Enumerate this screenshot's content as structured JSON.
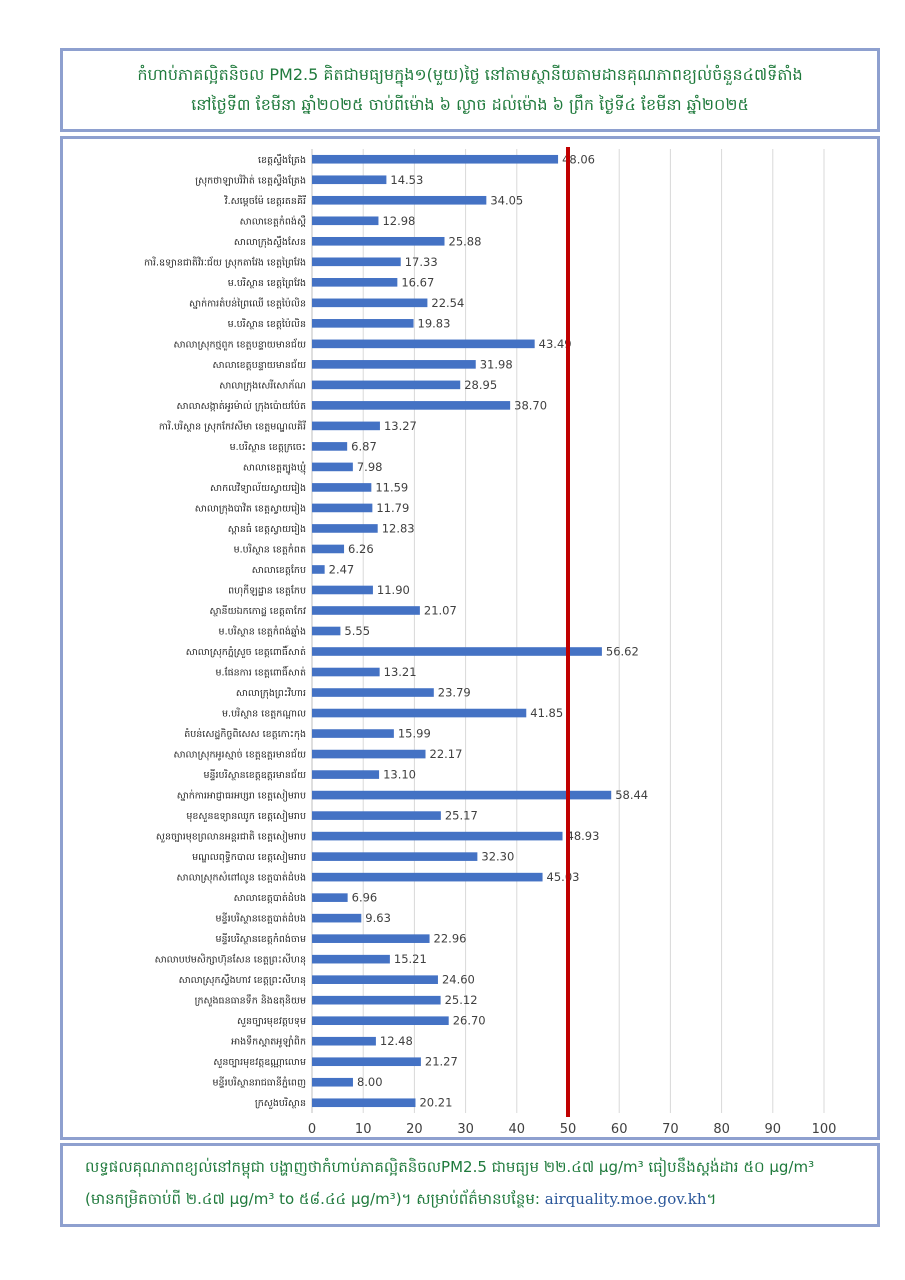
{
  "title": {
    "line1": "កំហាប់ភាគល្អិតនិចល PM2.5 គិតជាមធ្យមក្នុង១(មួយ)ថ្ងៃ នៅតាមស្ថានីយតាមដានគុណភាពខ្យល់ចំនួន៤៧ទីតាំង",
    "line2": "នៅថ្ងៃទី៣ ខែមីនា ឆ្នាំ២០២៥ ចាប់ពីម៉ោង ៦ ល្ងាច ដល់ម៉ោង ៦ ព្រឹក ថ្ងៃទី៤ ខែមីនា ឆ្នាំ២០២៥"
  },
  "footer": {
    "line1": "លទ្ធផលគុណភាពខ្យល់នៅកម្ពុជា បង្ហាញថាកំហាប់ភាគល្អិតនិចលPM2.5 ជាមធ្យម ២២.៤៧ μg/m³ ធៀបនឹងស្តង់ដារ ៥០ μg/m³",
    "line2_prefix": "(មានកម្រិតចាប់ពី ២.៤៧ μg/m³ to ៥៨.៤៤ μg/m³)។ សម្រាប់ព័ត៌មានបន្ថែម: ",
    "line2_link": "airquality.moe.gov.kh",
    "line2_suffix": "។"
  },
  "chart_data": {
    "type": "bar",
    "orientation": "horizontal",
    "unit": "μg/m³",
    "xlim": [
      0,
      100
    ],
    "x_ticks": [
      0,
      10,
      20,
      30,
      40,
      50,
      60,
      70,
      80,
      90,
      100
    ],
    "grid": "vertical",
    "reference_line": {
      "value": 50,
      "color": "#c00000"
    },
    "bar_color": "#4472c4",
    "categories": [
      "ខេត្តស្ទឹងត្រែង",
      "ស្រុកថាឡាបរិវ៉ាត់ ខេត្តស្ទឹងត្រែង",
      "វិ.សម្តេចម៉ែ ខេត្តរតនគិរី",
      "សាលាខេត្តកំពង់ស្ពឺ",
      "សាលាក្រុងស្ទឹងសែន",
      "ការិ.ឧទ្យានជាតិវិរៈជ័យ ស្រុកតាវែង ខេត្តព្រៃវែង",
      "ម.បរិស្ថាន ខេត្តព្រៃវែង",
      "ស្នាក់ការតំបន់ព្រៃឈើ ខេត្តប៉ៃលិន",
      "ម.បរិស្ថាន ខេត្តប៉ៃលិន",
      "សាលាស្រុកថ្មពួក ខេត្តបន្ទាយមានជ័យ",
      "សាលាខេត្តបន្ទាយមានជ័យ",
      "សាលាក្រុងសេរីសោភ័ណ",
      "សាលាសង្កាត់អូរម៉ាល់ ក្រុងប៉ោយប៉ែត",
      "ការិ.បរិស្ថាន ស្រុកកែវសីមា ខេត្តមណ្ឌលគិរី",
      "ម.បរិស្ថាន ខេត្តក្រចេះ",
      "សាលាខេត្តត្បូងឃ្មុំ",
      "សាកលវិទ្យាល័យស្វាយរៀង",
      "សាលាក្រុងបាវិត ខេត្តស្វាយរៀង",
      "ស្ពានធំ ខេត្តស្វាយរៀង",
      "ម.បរិស្ថាន ខេត្តកំពត",
      "សាលាខេត្តកែប",
      "ពហុកីឡដ្ឋាន ខេត្តកែប",
      "ស្ថានីយឯកកោដ្ឋ ខេត្តតាកែវ",
      "ម.បរិស្ថាន ខេត្តកំពង់ឆ្នាំង",
      "សាលាស្រុកភ្នំស្រួច ខេត្តពោធិ៍សាត់",
      "ម.ផែនការ ខេត្តពោធិ៍សាត់",
      "សាលាក្រុងព្រះវិហារ",
      "ម.បរិស្ថាន ខេត្តកណ្តាល",
      "តំបន់សេដ្ឋកិច្ចពិសេស ខេត្តកោះកុង",
      "សាលាស្រុកអូរស្មាច់ ខេត្តឧត្តរមានជ័យ",
      "មន្ទីរបរិស្ថានខេត្តឧត្តរមានជ័យ",
      "ស្នាក់ការអាជ្ញាធរអប្សរា ខេត្តសៀមរាប",
      "មុខសួនឧទ្យានឈូក ខេត្តសៀមរាប",
      "សួនច្បារមុខព្រលានអន្តរជាតិ ខេត្តសៀមរាប",
      "មណ្ឌលពុទ្ធិកបាល ខេត្តសៀមរាប",
      "សាលាស្រុកសំពៅលូន ខេត្តបាត់ដំបង",
      "សាលាខេត្តបាត់ដំបង",
      "មន្ទីរបរិស្ថានខេត្តបាត់ដំបង",
      "មន្ទីរបរិស្ថានខេត្តកំពង់ចាម",
      "សាលាបឋមសិក្សាហ៊ុនសែន ខេត្តព្រះសីហនុ",
      "សាលាស្រុកស្ទឹងហាវ ខេត្តព្រះសីហនុ",
      "ក្រសួងធនធានទឹក និងឧតុនិយម",
      "សួនច្បារមុខវត្តបទុម",
      "អាងទឹកស្តាតអូឡាំពិក",
      "សួនច្បារមុខវត្តឧណ្ណាលោម",
      "មន្ទីរបរិស្ថានរាជធានីភ្នំពេញ",
      "ក្រសួងបរិស្ថាន"
    ],
    "values": [
      48.06,
      14.53,
      34.05,
      12.98,
      25.88,
      17.33,
      16.67,
      22.54,
      19.83,
      43.49,
      31.98,
      28.95,
      38.7,
      13.27,
      6.87,
      7.98,
      11.59,
      11.79,
      12.83,
      6.26,
      2.47,
      11.9,
      21.07,
      5.55,
      56.62,
      13.21,
      23.79,
      41.85,
      15.99,
      22.17,
      13.1,
      58.44,
      25.17,
      48.93,
      32.3,
      45.03,
      6.96,
      9.63,
      22.96,
      15.21,
      24.6,
      25.12,
      26.7,
      12.48,
      21.27,
      8.0,
      20.21
    ]
  }
}
